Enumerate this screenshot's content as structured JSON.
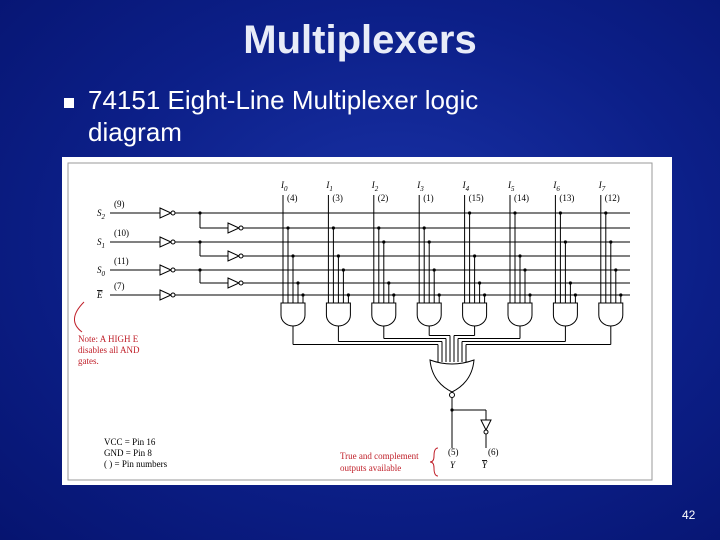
{
  "header": {
    "title": "Multiplexers"
  },
  "bullets": [
    "74151 Eight-Line Multiplexer logic diagram"
  ],
  "diagram": {
    "data_inputs": [
      {
        "name": "I",
        "sub": "0",
        "pin": "(4)"
      },
      {
        "name": "I",
        "sub": "1",
        "pin": "(3)"
      },
      {
        "name": "I",
        "sub": "2",
        "pin": "(2)"
      },
      {
        "name": "I",
        "sub": "3",
        "pin": "(1)"
      },
      {
        "name": "I",
        "sub": "4",
        "pin": "(15)"
      },
      {
        "name": "I",
        "sub": "5",
        "pin": "(14)"
      },
      {
        "name": "I",
        "sub": "6",
        "pin": "(13)"
      },
      {
        "name": "I",
        "sub": "7",
        "pin": "(12)"
      }
    ],
    "select_inputs": [
      {
        "name": "S",
        "sub": "2",
        "pin": "(9)"
      },
      {
        "name": "S",
        "sub": "1",
        "pin": "(10)"
      },
      {
        "name": "S",
        "sub": "0",
        "pin": "(11)"
      },
      {
        "name": "E",
        "pin": "(7)"
      }
    ],
    "note": [
      "Note: A HIGH E",
      "disables all AND",
      "gates."
    ],
    "pin_info": [
      "VCC = Pin 16",
      "GND = Pin 8",
      "(    ) = Pin numbers"
    ],
    "output_note": [
      "True and complement",
      "outputs available"
    ],
    "outputs": [
      {
        "name": "Y",
        "pin": "(5)"
      },
      {
        "name": "Y",
        "pin": "(6)"
      }
    ]
  },
  "page_number": "42"
}
